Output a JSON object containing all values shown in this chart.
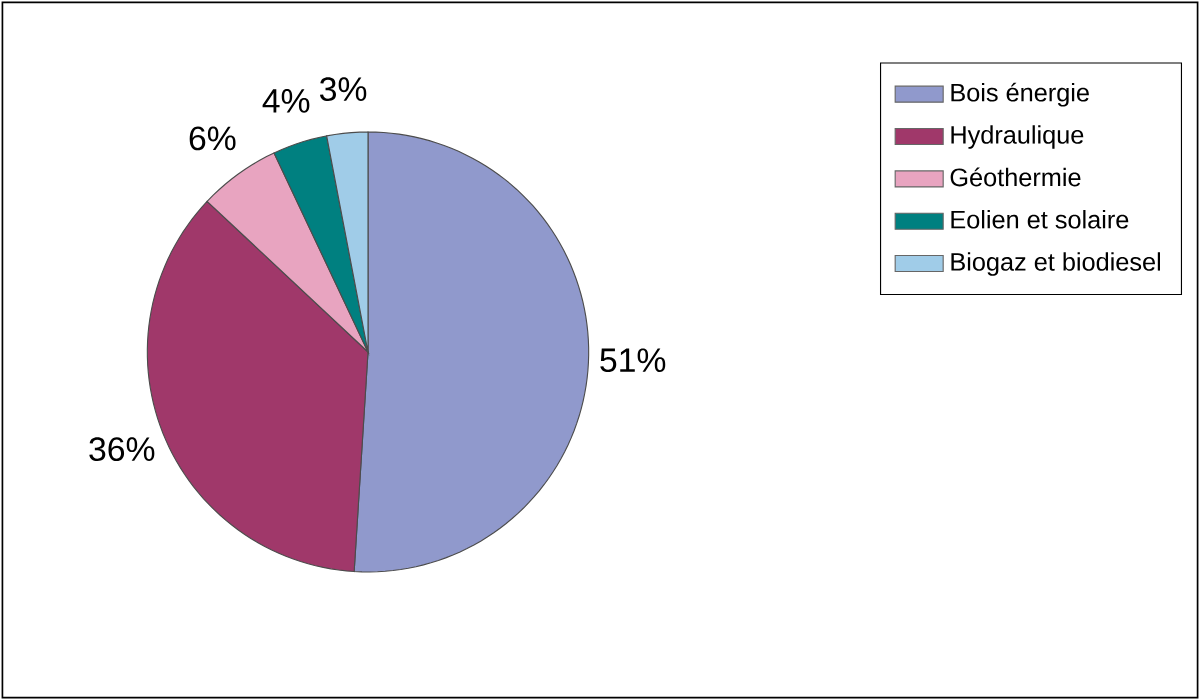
{
  "chart_data": {
    "type": "pie",
    "categories": [
      "Bois énergie",
      "Hydraulique",
      "Géothermie",
      "Eolien et solaire",
      "Biogaz et biodiesel"
    ],
    "values": [
      51,
      36,
      6,
      4,
      3
    ],
    "value_labels": [
      "51%",
      "36%",
      "6%",
      "4%",
      "3%"
    ],
    "colors": [
      "#9099cc",
      "#a0386a",
      "#e8a4c0",
      "#008080",
      "#a0cce8"
    ],
    "legend": "top right"
  }
}
